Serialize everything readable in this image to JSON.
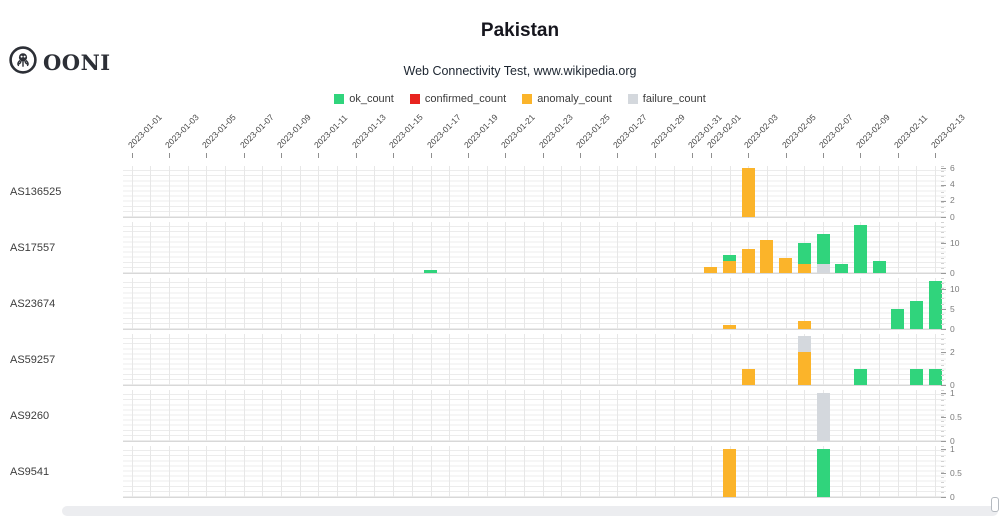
{
  "brand": {
    "logo_text": "OONI"
  },
  "chart_data": {
    "type": "bar",
    "stacked": true,
    "x_axis_position": "top",
    "grid": true,
    "title": "Pakistan",
    "subtitle": "Web Connectivity Test, www.wikipedia.org",
    "legend": [
      {
        "name": "ok_count",
        "color": "#30d47c"
      },
      {
        "name": "confirmed_count",
        "color": "#e8241f"
      },
      {
        "name": "anomaly_count",
        "color": "#fbb42a"
      },
      {
        "name": "failure_count",
        "color": "#d4d8dd"
      }
    ],
    "stack_order": [
      "confirmed_count",
      "anomaly_count",
      "failure_count",
      "ok_count"
    ],
    "x_start": "2023-01-01",
    "x_end": "2023-02-13",
    "x_tick_labels": [
      "2023-01-01",
      "2023-01-03",
      "2023-01-05",
      "2023-01-07",
      "2023-01-09",
      "2023-01-11",
      "2023-01-13",
      "2023-01-15",
      "2023-01-17",
      "2023-01-19",
      "2023-01-21",
      "2023-01-23",
      "2023-01-25",
      "2023-01-27",
      "2023-01-29",
      "2023-01-31",
      "2023-02-01",
      "2023-02-03",
      "2023-02-05",
      "2023-02-07",
      "2023-02-09",
      "2023-02-11",
      "2023-02-13"
    ],
    "facets": [
      {
        "label": "AS136525",
        "y_ticks": [
          0,
          2,
          4,
          6
        ],
        "y_max": 6.3,
        "bars": [
          {
            "date": "2023-02-03",
            "anomaly_count": 6
          }
        ]
      },
      {
        "label": "AS17557",
        "y_ticks": [
          0,
          10
        ],
        "y_max": 17,
        "bars": [
          {
            "date": "2023-01-17",
            "ok_count": 1
          },
          {
            "date": "2023-02-01",
            "anomaly_count": 2
          },
          {
            "date": "2023-02-02",
            "anomaly_count": 4,
            "ok_count": 2
          },
          {
            "date": "2023-02-03",
            "anomaly_count": 8
          },
          {
            "date": "2023-02-04",
            "anomaly_count": 11
          },
          {
            "date": "2023-02-05",
            "anomaly_count": 5
          },
          {
            "date": "2023-02-06",
            "anomaly_count": 3,
            "ok_count": 7
          },
          {
            "date": "2023-02-07",
            "failure_count": 3,
            "ok_count": 10
          },
          {
            "date": "2023-02-08",
            "ok_count": 3
          },
          {
            "date": "2023-02-09",
            "ok_count": 16
          },
          {
            "date": "2023-02-10",
            "ok_count": 4
          }
        ]
      },
      {
        "label": "AS23674",
        "y_ticks": [
          0,
          5,
          10
        ],
        "y_max": 12.85,
        "bars": [
          {
            "date": "2023-02-02",
            "anomaly_count": 1
          },
          {
            "date": "2023-02-06",
            "anomaly_count": 2
          },
          {
            "date": "2023-02-11",
            "ok_count": 5
          },
          {
            "date": "2023-02-12",
            "ok_count": 7
          },
          {
            "date": "2023-02-13",
            "ok_count": 12
          }
        ]
      },
      {
        "label": "AS59257",
        "y_ticks": [
          0,
          2
        ],
        "y_max": 3.1,
        "bars": [
          {
            "date": "2023-02-03",
            "anomaly_count": 1
          },
          {
            "date": "2023-02-06",
            "anomaly_count": 2,
            "failure_count": 1
          },
          {
            "date": "2023-02-09",
            "ok_count": 1
          },
          {
            "date": "2023-02-12",
            "ok_count": 1
          },
          {
            "date": "2023-02-13",
            "ok_count": 1
          }
        ]
      },
      {
        "label": "AS9260",
        "y_ticks": [
          0,
          0.5,
          1
        ],
        "y_max": 1.07,
        "bars": [
          {
            "date": "2023-02-07",
            "failure_count": 1
          }
        ]
      },
      {
        "label": "AS9541",
        "y_ticks": [
          0,
          0.5,
          1
        ],
        "y_max": 1.07,
        "bars": [
          {
            "date": "2023-02-02",
            "anomaly_count": 1
          },
          {
            "date": "2023-02-07",
            "ok_count": 1
          }
        ]
      }
    ]
  }
}
